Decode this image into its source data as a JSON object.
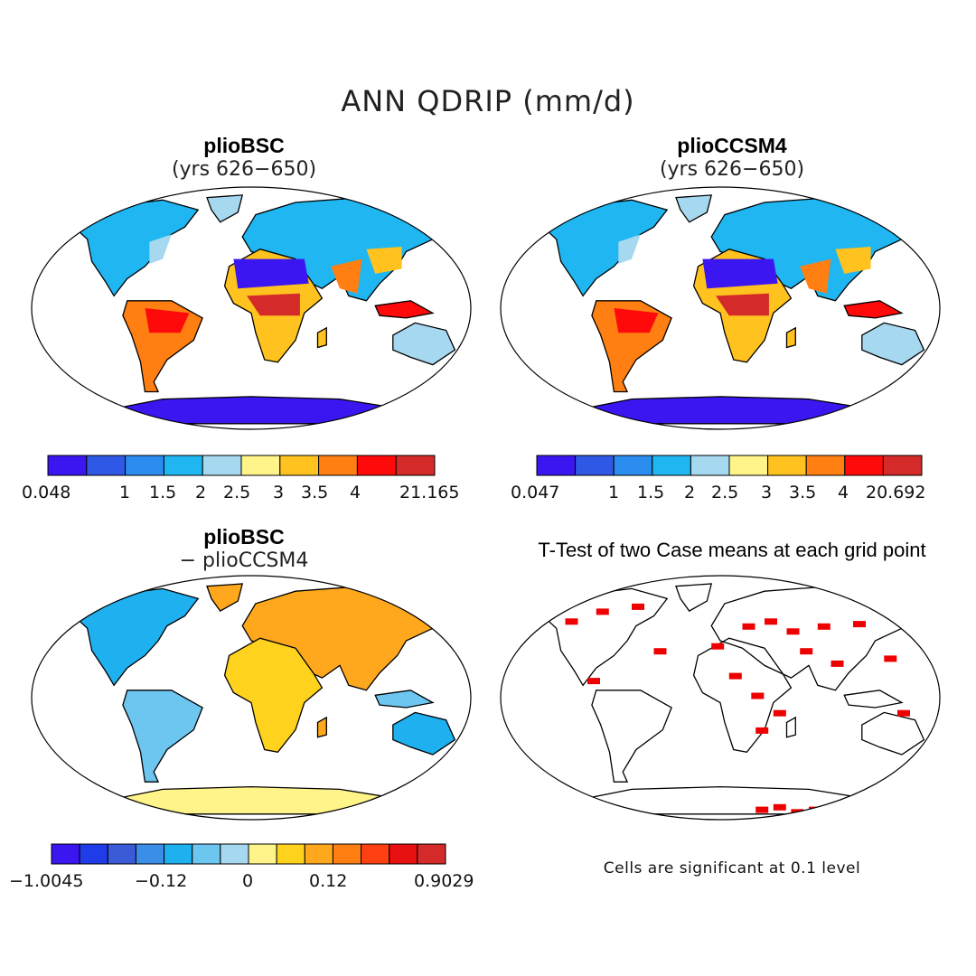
{
  "title": "ANN QDRIP (mm/d)",
  "panels": [
    {
      "title": "plioBSC",
      "subtitle": "(yrs 626−650)",
      "colorbar": {
        "ticks": [
          "0.048",
          "1",
          "1.5",
          "2",
          "2.5",
          "3",
          "3.5",
          "4",
          "21.165"
        ]
      }
    },
    {
      "title": "plioCCSM4",
      "subtitle": "(yrs 626−650)",
      "colorbar": {
        "ticks": [
          "0.047",
          "1",
          "1.5",
          "2",
          "2.5",
          "3",
          "3.5",
          "4",
          "20.692"
        ]
      }
    },
    {
      "title": "plioBSC",
      "subtitle": "− plioCCSM4",
      "colorbar": {
        "ticks": [
          "−1.0045",
          "−0.12",
          "0",
          "0.12",
          "0.9029"
        ]
      }
    },
    {
      "title": "T-Test of two Case means at each grid point",
      "note": "Cells are significant at 0.1 level"
    }
  ],
  "palettes": {
    "abs": [
      "#3b16f0",
      "#2f58e6",
      "#2b8cf0",
      "#1fb6f2",
      "#a6d8f0",
      "#fff48a",
      "#ffc21e",
      "#ff7f12",
      "#ff0a0a",
      "#d42a2a"
    ],
    "diff": [
      "#3b16f0",
      "#1f3ce8",
      "#3a5ad8",
      "#3a8ee8",
      "#1fb0f0",
      "#6cc6f0",
      "#a6d8f0",
      "#fff48a",
      "#ffd21e",
      "#ffa81e",
      "#ff7f12",
      "#ff4012",
      "#e81010",
      "#d42a2a"
    ]
  },
  "significance_color": "#ee0000"
}
